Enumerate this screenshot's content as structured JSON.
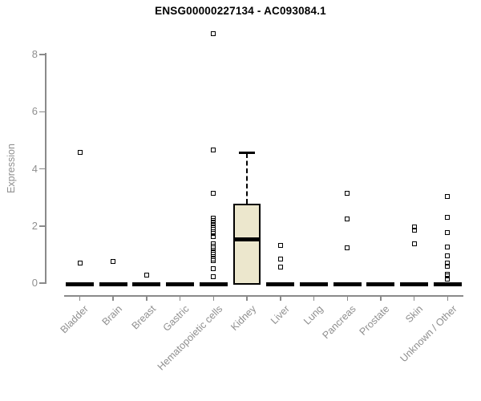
{
  "chart_data": {
    "type": "boxplot",
    "title": "ENSG00000227134 - AC093084.1",
    "ylabel": "Expression",
    "xlabel": "",
    "ylim": [
      0,
      8.8
    ],
    "yticks": [
      0,
      2,
      4,
      6,
      8
    ],
    "grid": false,
    "legend_position": "none",
    "categories": [
      "Bladder",
      "Brain",
      "Breast",
      "Gastric",
      "Hematopoietic cells",
      "Kidney",
      "Liver",
      "Lung",
      "Pancreas",
      "Prostate",
      "Skin",
      "Unknown / Other"
    ],
    "series": [
      {
        "name": "Bladder",
        "q1": 0,
        "median": 0,
        "q3": 0,
        "whisker_low": 0,
        "whisker_high": 0,
        "outliers": [
          4.57,
          0.7
        ]
      },
      {
        "name": "Brain",
        "q1": 0,
        "median": 0,
        "q3": 0,
        "whisker_low": 0,
        "whisker_high": 0,
        "outliers": [
          0.76
        ]
      },
      {
        "name": "Breast",
        "q1": 0,
        "median": 0,
        "q3": 0,
        "whisker_low": 0,
        "whisker_high": 0,
        "outliers": [
          0.28
        ]
      },
      {
        "name": "Gastric",
        "q1": 0,
        "median": 0,
        "q3": 0,
        "whisker_low": 0,
        "whisker_high": 0,
        "outliers": []
      },
      {
        "name": "Hematopoietic cells",
        "q1": 0,
        "median": 0,
        "q3": 0,
        "whisker_low": 0,
        "whisker_high": 0,
        "outliers": [
          8.74,
          4.66,
          3.15,
          2.27,
          2.18,
          2.1,
          2.02,
          1.95,
          1.88,
          1.8,
          1.73,
          1.62,
          1.38,
          1.3,
          1.24,
          1.16,
          1.08,
          1.0,
          0.92,
          0.85,
          0.78,
          0.51,
          0.22
        ]
      },
      {
        "name": "Kidney",
        "q1": 0,
        "median": 1.52,
        "q3": 2.78,
        "whisker_low": 0,
        "whisker_high": 4.55,
        "outliers": []
      },
      {
        "name": "Liver",
        "q1": 0,
        "median": 0,
        "q3": 0,
        "whisker_low": 0,
        "whisker_high": 0,
        "outliers": [
          1.33,
          0.83,
          0.57
        ]
      },
      {
        "name": "Lung",
        "q1": 0,
        "median": 0,
        "q3": 0,
        "whisker_low": 0,
        "whisker_high": 0,
        "outliers": []
      },
      {
        "name": "Pancreas",
        "q1": 0,
        "median": 0,
        "q3": 0,
        "whisker_low": 0,
        "whisker_high": 0,
        "outliers": [
          3.15,
          2.24,
          1.24
        ]
      },
      {
        "name": "Prostate",
        "q1": 0,
        "median": 0,
        "q3": 0,
        "whisker_low": 0,
        "whisker_high": 0,
        "outliers": []
      },
      {
        "name": "Skin",
        "q1": 0,
        "median": 0,
        "q3": 0,
        "whisker_low": 0,
        "whisker_high": 0,
        "outliers": [
          1.97,
          1.85,
          1.38
        ]
      },
      {
        "name": "Unknown / Other",
        "q1": 0,
        "median": 0,
        "q3": 0,
        "whisker_low": 0,
        "whisker_high": 0,
        "outliers": [
          3.03,
          2.31,
          1.77,
          1.26,
          0.96,
          0.69,
          0.59,
          0.31,
          0.25,
          0.13
        ]
      }
    ],
    "colors": {
      "box_fill": "#ECE7CD",
      "box_border": "#000000",
      "zero_bar": "#000000",
      "outlier": "#000000",
      "axis": "#8A8A8A",
      "tick_label": "#8F8F8F",
      "title": "#000000",
      "background": "#FFFFFF"
    }
  }
}
